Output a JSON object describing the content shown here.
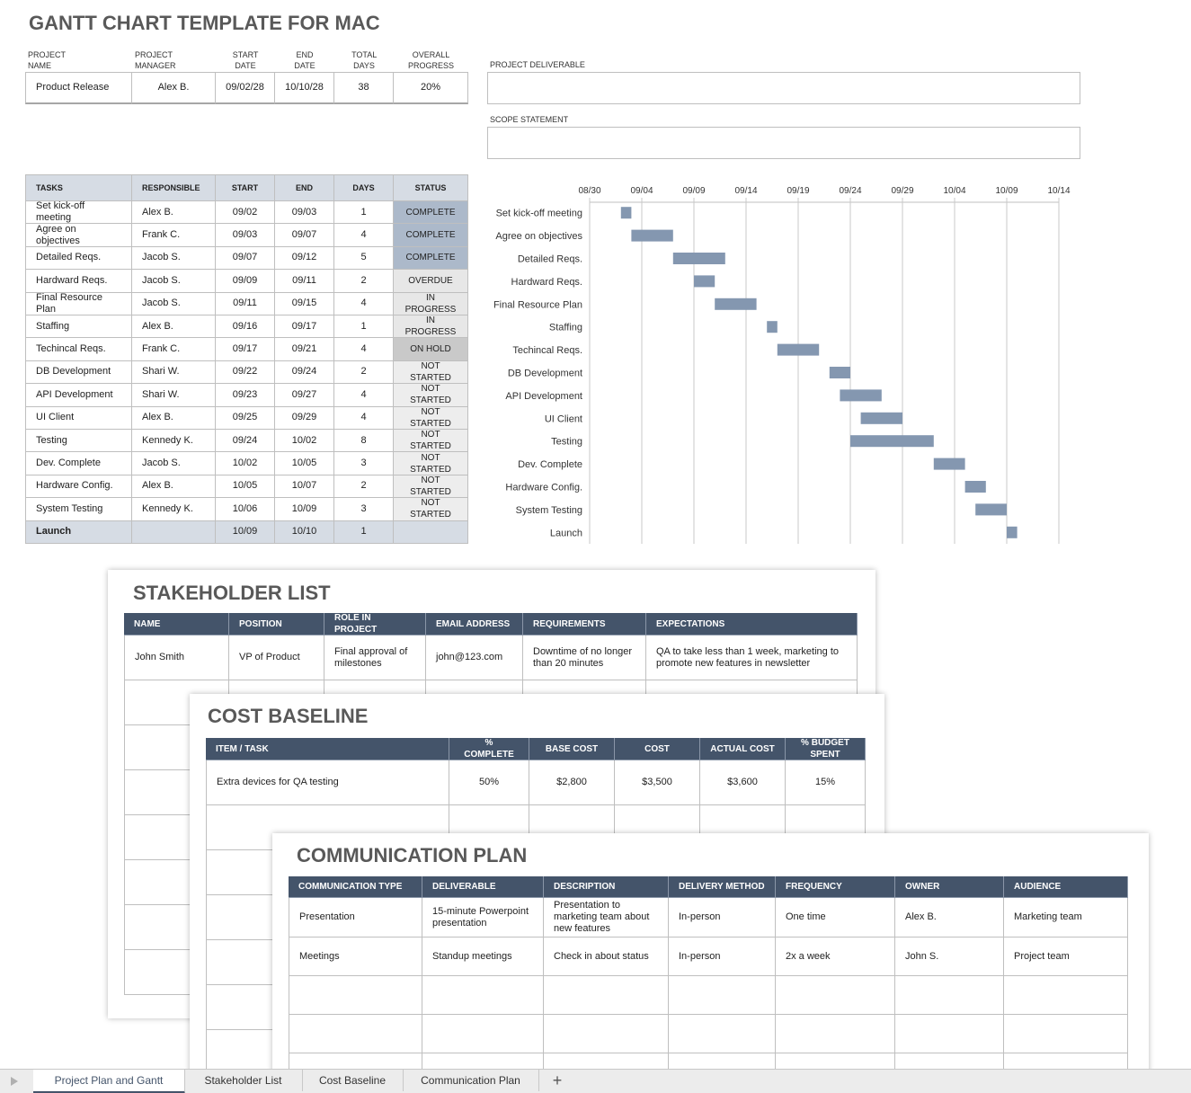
{
  "title": "GANTT CHART TEMPLATE FOR MAC",
  "project": {
    "headers": [
      "PROJECT NAME",
      "PROJECT MANAGER",
      "START DATE",
      "END DATE",
      "TOTAL DAYS",
      "OVERALL PROGRESS"
    ],
    "values": [
      "Product Release",
      "Alex B.",
      "09/02/28",
      "10/10/28",
      "38",
      "20%"
    ]
  },
  "deliverable_label": "PROJECT DELIVERABLE",
  "scope_label": "SCOPE STATEMENT",
  "tasks": {
    "headers": [
      "TASKS",
      "RESPONSIBLE",
      "START",
      "END",
      "DAYS",
      "STATUS"
    ],
    "rows": [
      [
        "Set kick-off meeting",
        "Alex B.",
        "09/02",
        "09/03",
        "1",
        "COMPLETE"
      ],
      [
        "Agree on objectives",
        "Frank C.",
        "09/03",
        "09/07",
        "4",
        "COMPLETE"
      ],
      [
        "Detailed Reqs.",
        "Jacob S.",
        "09/07",
        "09/12",
        "5",
        "COMPLETE"
      ],
      [
        "Hardward Reqs.",
        "Jacob S.",
        "09/09",
        "09/11",
        "2",
        "OVERDUE"
      ],
      [
        "Final Resource Plan",
        "Jacob S.",
        "09/11",
        "09/15",
        "4",
        "IN PROGRESS"
      ],
      [
        "Staffing",
        "Alex B.",
        "09/16",
        "09/17",
        "1",
        "IN PROGRESS"
      ],
      [
        "Techincal Reqs.",
        "Frank C.",
        "09/17",
        "09/21",
        "4",
        "ON HOLD"
      ],
      [
        "DB Development",
        "Shari W.",
        "09/22",
        "09/24",
        "2",
        "NOT STARTED"
      ],
      [
        "API Development",
        "Shari W.",
        "09/23",
        "09/27",
        "4",
        "NOT STARTED"
      ],
      [
        "UI Client",
        "Alex B.",
        "09/25",
        "09/29",
        "4",
        "NOT STARTED"
      ],
      [
        "Testing",
        "Kennedy K.",
        "09/24",
        "10/02",
        "8",
        "NOT STARTED"
      ],
      [
        "Dev. Complete",
        "Jacob S.",
        "10/02",
        "10/05",
        "3",
        "NOT STARTED"
      ],
      [
        "Hardware Config.",
        "Alex B.",
        "10/05",
        "10/07",
        "2",
        "NOT STARTED"
      ],
      [
        "System Testing",
        "Kennedy K.",
        "10/06",
        "10/09",
        "3",
        "NOT STARTED"
      ],
      [
        "Launch",
        null,
        "10/09",
        "10/10",
        "1",
        null
      ]
    ],
    "status_colors": {
      "COMPLETE": "#acb9ca",
      "OVERDUE": "#e7e7e7",
      "IN PROGRESS": "#e7e7e7",
      "ON HOLD": "#c9c9c9",
      "NOT STARTED": "#ededed"
    }
  },
  "gantt": {
    "xticks": [
      "08/30",
      "09/04",
      "09/09",
      "09/14",
      "09/19",
      "09/24",
      "09/29",
      "10/04",
      "10/09",
      "10/14"
    ],
    "bar_color": "#8497b0"
  },
  "stakeholder": {
    "title": "STAKEHOLDER LIST",
    "headers": [
      "NAME",
      "POSITION",
      "ROLE IN PROJECT",
      "EMAIL ADDRESS",
      "REQUIREMENTS",
      "EXPECTATIONS"
    ],
    "rows": [
      [
        "John Smith",
        "VP of Product",
        "Final approval of milestones",
        "john@123.com",
        "Downtime of no longer than 20 minutes",
        "QA to take less than 1 week, marketing to promote new features in newsletter"
      ]
    ]
  },
  "cost": {
    "title": "COST BASELINE",
    "headers": [
      "ITEM / TASK",
      "% COMPLETE",
      "BASE COST",
      "COST",
      "ACTUAL COST",
      "% BUDGET SPENT"
    ],
    "rows": [
      [
        "Extra devices for QA testing",
        "50%",
        "$2,800",
        "$3,500",
        "$3,600",
        "15%"
      ]
    ]
  },
  "communication": {
    "title": "COMMUNICATION PLAN",
    "headers": [
      "COMMUNICATION TYPE",
      "DELIVERABLE",
      "DESCRIPTION",
      "DELIVERY METHOD",
      "FREQUENCY",
      "OWNER",
      "AUDIENCE"
    ],
    "rows": [
      [
        "Presentation",
        "15-minute Powerpoint presentation",
        "Presentation to marketing team about new features",
        "In-person",
        "One time",
        "Alex B.",
        "Marketing team"
      ],
      [
        "Meetings",
        "Standup meetings",
        "Check in about status",
        "In-person",
        "2x a week",
        "John S.",
        "Project team"
      ]
    ]
  },
  "tabs": [
    "Project Plan and Gantt",
    "Stakeholder List",
    "Cost Baseline",
    "Communication Plan"
  ]
}
